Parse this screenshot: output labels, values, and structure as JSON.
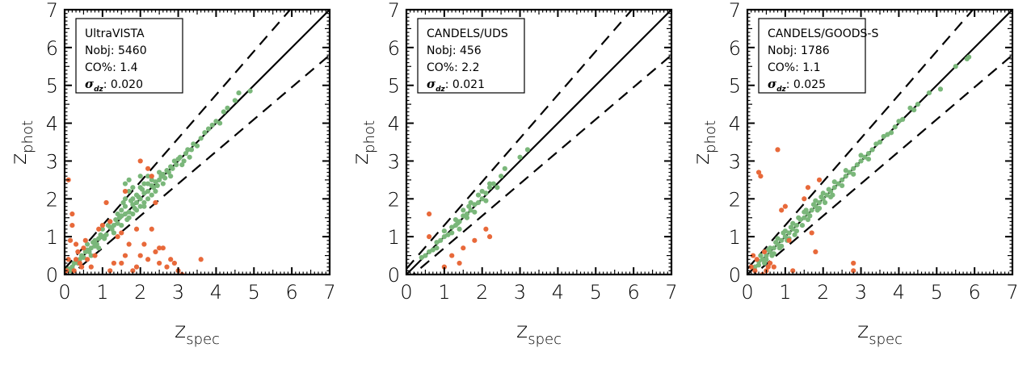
{
  "colors": {
    "good": "#7ab77a",
    "outlier": "#e8693a",
    "line": "#000000"
  },
  "chart_data": [
    {
      "type": "scatter",
      "xlabel_main": "z",
      "xlabel_sub": "spec",
      "ylabel_main": "z",
      "ylabel_sub": "phot",
      "xlim": [
        0,
        7
      ],
      "ylim": [
        0,
        7
      ],
      "x_ticks": [
        "0",
        "1",
        "2",
        "3",
        "4",
        "5",
        "6",
        "7"
      ],
      "y_ticks": [
        "0",
        "1",
        "2",
        "3",
        "4",
        "5",
        "6",
        "7"
      ],
      "legend_position": "top-left",
      "legend": {
        "name": "UltraVISTA",
        "nobj_label": "Nobj:",
        "nobj": "5460",
        "co_label": "CO%:",
        "co": "1.4",
        "sigma_symbol": "σ",
        "sigma_sub": "dz",
        "sigma": "0.020"
      },
      "lines": {
        "one_to_one": true,
        "dashed_scatter": 0.15
      },
      "good_points": [
        [
          0.1,
          0.15
        ],
        [
          0.2,
          0.2
        ],
        [
          0.3,
          0.35
        ],
        [
          0.4,
          0.4
        ],
        [
          0.5,
          0.45
        ],
        [
          0.6,
          0.65
        ],
        [
          0.7,
          0.7
        ],
        [
          0.8,
          0.75
        ],
        [
          0.9,
          0.95
        ],
        [
          1.0,
          1.0
        ],
        [
          1.1,
          1.05
        ],
        [
          1.2,
          1.25
        ],
        [
          1.3,
          1.3
        ],
        [
          1.4,
          1.35
        ],
        [
          1.5,
          1.55
        ],
        [
          1.6,
          1.6
        ],
        [
          1.7,
          1.65
        ],
        [
          1.8,
          1.85
        ],
        [
          1.9,
          1.9
        ],
        [
          2.0,
          2.0
        ],
        [
          2.1,
          2.15
        ],
        [
          2.2,
          2.2
        ],
        [
          2.3,
          2.35
        ],
        [
          2.4,
          2.45
        ],
        [
          2.5,
          2.5
        ],
        [
          2.6,
          2.65
        ],
        [
          2.7,
          2.75
        ],
        [
          2.8,
          2.85
        ],
        [
          3.0,
          3.05
        ],
        [
          3.2,
          3.2
        ],
        [
          3.4,
          3.45
        ],
        [
          3.6,
          3.6
        ],
        [
          3.8,
          3.85
        ],
        [
          4.0,
          4.05
        ],
        [
          4.3,
          4.4
        ],
        [
          4.5,
          4.6
        ],
        [
          4.9,
          4.85
        ],
        [
          1.5,
          1.7
        ],
        [
          1.6,
          1.8
        ],
        [
          1.7,
          1.5
        ],
        [
          1.8,
          1.6
        ],
        [
          1.9,
          2.1
        ],
        [
          2.0,
          1.8
        ],
        [
          2.1,
          1.9
        ],
        [
          2.2,
          2.4
        ],
        [
          1.2,
          1.4
        ],
        [
          1.3,
          1.1
        ],
        [
          1.4,
          1.6
        ],
        [
          1.5,
          1.3
        ],
        [
          1.0,
          1.2
        ],
        [
          0.9,
          0.7
        ],
        [
          0.8,
          0.9
        ],
        [
          0.7,
          0.5
        ],
        [
          0.6,
          0.8
        ],
        [
          2.4,
          2.2
        ],
        [
          2.5,
          2.7
        ],
        [
          2.6,
          2.4
        ],
        [
          2.3,
          2.5
        ],
        [
          2.8,
          2.6
        ],
        [
          2.9,
          3.0
        ],
        [
          3.1,
          2.9
        ],
        [
          3.3,
          3.1
        ],
        [
          1.6,
          2.0
        ],
        [
          1.7,
          2.2
        ],
        [
          1.8,
          2.0
        ],
        [
          1.9,
          1.7
        ],
        [
          2.0,
          2.3
        ],
        [
          2.1,
          1.8
        ],
        [
          2.2,
          2.0
        ],
        [
          1.55,
          1.9
        ],
        [
          1.65,
          1.45
        ],
        [
          1.75,
          1.95
        ],
        [
          1.85,
          1.75
        ],
        [
          1.95,
          2.05
        ],
        [
          2.05,
          2.25
        ],
        [
          1.45,
          1.5
        ],
        [
          1.35,
          1.45
        ],
        [
          1.25,
          1.2
        ],
        [
          1.15,
          1.3
        ],
        [
          1.05,
          0.95
        ],
        [
          0.95,
          1.05
        ],
        [
          0.85,
          0.8
        ],
        [
          0.75,
          0.85
        ],
        [
          0.65,
          0.6
        ],
        [
          0.55,
          0.6
        ],
        [
          0.45,
          0.5
        ],
        [
          0.35,
          0.3
        ],
        [
          0.25,
          0.3
        ],
        [
          0.15,
          0.1
        ],
        [
          2.35,
          2.3
        ],
        [
          2.45,
          2.35
        ],
        [
          2.55,
          2.6
        ],
        [
          2.65,
          2.55
        ],
        [
          2.75,
          2.7
        ],
        [
          2.85,
          2.8
        ],
        [
          2.95,
          2.9
        ],
        [
          3.05,
          3.1
        ],
        [
          3.15,
          3.0
        ],
        [
          3.25,
          3.3
        ],
        [
          3.35,
          3.3
        ],
        [
          3.5,
          3.4
        ],
        [
          3.7,
          3.75
        ],
        [
          3.9,
          3.95
        ],
        [
          4.1,
          4.0
        ],
        [
          4.2,
          4.3
        ],
        [
          4.6,
          4.8
        ],
        [
          1.6,
          2.4
        ],
        [
          1.7,
          2.5
        ],
        [
          1.8,
          2.3
        ],
        [
          2.2,
          2.6
        ],
        [
          2.3,
          2.1
        ],
        [
          2.0,
          2.6
        ],
        [
          2.1,
          2.4
        ]
      ],
      "outlier_points": [
        [
          0.1,
          2.5
        ],
        [
          0.2,
          1.3
        ],
        [
          0.15,
          0.9
        ],
        [
          0.3,
          0.8
        ],
        [
          0.35,
          0.6
        ],
        [
          0.4,
          0.3
        ],
        [
          0.5,
          0.7
        ],
        [
          0.55,
          0.9
        ],
        [
          0.6,
          0.4
        ],
        [
          0.7,
          0.2
        ],
        [
          0.8,
          0.5
        ],
        [
          0.9,
          1.2
        ],
        [
          1.0,
          1.3
        ],
        [
          1.1,
          1.9
        ],
        [
          1.2,
          0.1
        ],
        [
          1.3,
          0.3
        ],
        [
          1.4,
          1.0
        ],
        [
          1.5,
          0.3
        ],
        [
          1.6,
          0.5
        ],
        [
          1.7,
          0.8
        ],
        [
          1.8,
          0.1
        ],
        [
          1.9,
          0.2
        ],
        [
          2.0,
          0.5
        ],
        [
          2.1,
          0.8
        ],
        [
          2.2,
          0.4
        ],
        [
          2.3,
          1.2
        ],
        [
          2.4,
          0.6
        ],
        [
          2.5,
          0.3
        ],
        [
          2.6,
          0.7
        ],
        [
          2.7,
          0.2
        ],
        [
          2.8,
          0.4
        ],
        [
          3.0,
          0.1
        ],
        [
          3.1,
          0.0
        ],
        [
          3.6,
          0.4
        ],
        [
          2.4,
          1.9
        ],
        [
          2.3,
          2.6
        ],
        [
          1.9,
          1.2
        ],
        [
          1.6,
          2.2
        ],
        [
          1.5,
          1.1
        ],
        [
          1.2,
          1.4
        ],
        [
          0.2,
          1.6
        ],
        [
          0.25,
          0.1
        ],
        [
          0.1,
          0.4
        ],
        [
          0.05,
          0.1
        ],
        [
          0.3,
          0.4
        ],
        [
          0.45,
          0.2
        ],
        [
          2.0,
          3.0
        ],
        [
          2.2,
          2.8
        ],
        [
          2.5,
          0.7
        ],
        [
          2.9,
          0.3
        ]
      ]
    },
    {
      "type": "scatter",
      "xlabel_main": "z",
      "xlabel_sub": "spec",
      "ylabel_main": "z",
      "ylabel_sub": "phot",
      "xlim": [
        0,
        7
      ],
      "ylim": [
        0,
        7
      ],
      "x_ticks": [
        "0",
        "1",
        "2",
        "3",
        "4",
        "5",
        "6",
        "7"
      ],
      "y_ticks": [
        "0",
        "1",
        "2",
        "3",
        "4",
        "5",
        "6",
        "7"
      ],
      "legend_position": "top-left",
      "legend": {
        "name": "CANDELS/UDS",
        "nobj_label": "Nobj:",
        "nobj": "456",
        "co_label": "CO%:",
        "co": "2.2",
        "sigma_symbol": "σ",
        "sigma_sub": "dz",
        "sigma": "0.021"
      },
      "lines": {
        "one_to_one": true,
        "dashed_scatter": 0.15
      },
      "good_points": [
        [
          0.4,
          0.45
        ],
        [
          0.5,
          0.5
        ],
        [
          0.6,
          0.6
        ],
        [
          0.7,
          0.65
        ],
        [
          0.8,
          0.85
        ],
        [
          0.9,
          0.9
        ],
        [
          1.0,
          1.0
        ],
        [
          1.1,
          1.05
        ],
        [
          1.2,
          1.25
        ],
        [
          1.3,
          1.3
        ],
        [
          1.4,
          1.4
        ],
        [
          1.5,
          1.55
        ],
        [
          1.6,
          1.6
        ],
        [
          1.7,
          1.7
        ],
        [
          1.8,
          1.85
        ],
        [
          1.9,
          1.9
        ],
        [
          2.0,
          2.0
        ],
        [
          2.1,
          2.15
        ],
        [
          2.2,
          2.3
        ],
        [
          2.3,
          2.4
        ],
        [
          2.5,
          2.6
        ],
        [
          2.6,
          2.8
        ],
        [
          3.0,
          3.1
        ],
        [
          3.2,
          3.3
        ],
        [
          1.5,
          1.7
        ],
        [
          1.6,
          1.5
        ],
        [
          1.3,
          1.45
        ],
        [
          1.2,
          1.1
        ],
        [
          1.7,
          1.9
        ],
        [
          1.8,
          1.65
        ],
        [
          2.0,
          2.2
        ],
        [
          2.1,
          1.95
        ],
        [
          2.2,
          2.4
        ],
        [
          1.4,
          1.2
        ],
        [
          1.0,
          1.15
        ],
        [
          0.8,
          0.7
        ],
        [
          2.4,
          2.3
        ],
        [
          1.9,
          2.1
        ],
        [
          1.65,
          1.8
        ],
        [
          1.35,
          1.35
        ]
      ],
      "outlier_points": [
        [
          0.6,
          1.0
        ],
        [
          0.6,
          1.6
        ],
        [
          1.2,
          0.5
        ],
        [
          1.4,
          0.3
        ],
        [
          1.5,
          0.7
        ],
        [
          1.8,
          0.9
        ],
        [
          2.1,
          1.2
        ],
        [
          2.2,
          1.0
        ],
        [
          1.0,
          0.2
        ]
      ]
    },
    {
      "type": "scatter",
      "xlabel_main": "z",
      "xlabel_sub": "spec",
      "ylabel_main": "z",
      "ylabel_sub": "phot",
      "xlim": [
        0,
        7
      ],
      "ylim": [
        0,
        7
      ],
      "x_ticks": [
        "0",
        "1",
        "2",
        "3",
        "4",
        "5",
        "6",
        "7"
      ],
      "y_ticks": [
        "0",
        "1",
        "2",
        "3",
        "4",
        "5",
        "6",
        "7"
      ],
      "legend_position": "top-left",
      "legend": {
        "name": "CANDELS/GOODS-S",
        "nobj_label": "Nobj:",
        "nobj": "1786",
        "co_label": "CO%:",
        "co": "1.1",
        "sigma_symbol": "σ",
        "sigma_sub": "dz",
        "sigma": "0.025"
      },
      "lines": {
        "one_to_one": true,
        "dashed_scatter": 0.15
      },
      "good_points": [
        [
          0.2,
          0.2
        ],
        [
          0.3,
          0.35
        ],
        [
          0.4,
          0.4
        ],
        [
          0.5,
          0.5
        ],
        [
          0.6,
          0.6
        ],
        [
          0.7,
          0.7
        ],
        [
          0.8,
          0.8
        ],
        [
          0.9,
          0.9
        ],
        [
          1.0,
          1.0
        ],
        [
          1.1,
          1.1
        ],
        [
          1.2,
          1.2
        ],
        [
          1.3,
          1.3
        ],
        [
          1.4,
          1.45
        ],
        [
          1.5,
          1.5
        ],
        [
          1.6,
          1.6
        ],
        [
          1.7,
          1.7
        ],
        [
          1.8,
          1.8
        ],
        [
          1.9,
          1.9
        ],
        [
          2.0,
          2.0
        ],
        [
          2.1,
          2.1
        ],
        [
          2.2,
          2.2
        ],
        [
          2.3,
          2.3
        ],
        [
          2.4,
          2.4
        ],
        [
          2.5,
          2.5
        ],
        [
          2.6,
          2.6
        ],
        [
          2.7,
          2.7
        ],
        [
          2.8,
          2.8
        ],
        [
          2.9,
          2.9
        ],
        [
          3.0,
          3.0
        ],
        [
          3.1,
          3.1
        ],
        [
          3.2,
          3.2
        ],
        [
          3.3,
          3.3
        ],
        [
          3.5,
          3.5
        ],
        [
          3.7,
          3.7
        ],
        [
          3.9,
          3.9
        ],
        [
          4.1,
          4.1
        ],
        [
          4.3,
          4.4
        ],
        [
          4.5,
          4.5
        ],
        [
          4.8,
          4.8
        ],
        [
          5.1,
          4.9
        ],
        [
          5.5,
          5.5
        ],
        [
          5.8,
          5.7
        ],
        [
          5.85,
          5.75
        ],
        [
          0.5,
          0.4
        ],
        [
          0.6,
          0.7
        ],
        [
          0.7,
          0.55
        ],
        [
          0.8,
          0.95
        ],
        [
          0.9,
          0.75
        ],
        [
          1.0,
          1.15
        ],
        [
          1.1,
          0.95
        ],
        [
          1.2,
          1.35
        ],
        [
          1.3,
          1.15
        ],
        [
          1.5,
          1.65
        ],
        [
          1.6,
          1.45
        ],
        [
          1.8,
          1.95
        ],
        [
          1.9,
          1.75
        ],
        [
          2.0,
          2.15
        ],
        [
          2.2,
          2.05
        ],
        [
          2.3,
          2.45
        ],
        [
          2.5,
          2.35
        ],
        [
          2.6,
          2.75
        ],
        [
          2.8,
          2.65
        ],
        [
          3.0,
          3.15
        ],
        [
          3.2,
          3.05
        ],
        [
          3.4,
          3.45
        ],
        [
          3.6,
          3.65
        ],
        [
          3.8,
          3.75
        ],
        [
          4.0,
          4.05
        ],
        [
          4.4,
          4.35
        ],
        [
          0.3,
          0.25
        ],
        [
          0.35,
          0.5
        ],
        [
          0.45,
          0.3
        ],
        [
          0.55,
          0.65
        ],
        [
          0.65,
          0.5
        ],
        [
          0.75,
          0.85
        ],
        [
          0.85,
          0.7
        ],
        [
          0.95,
          1.1
        ],
        [
          1.05,
          0.9
        ],
        [
          1.15,
          1.25
        ],
        [
          1.25,
          1.05
        ],
        [
          1.35,
          1.5
        ],
        [
          1.45,
          1.3
        ],
        [
          1.55,
          1.7
        ],
        [
          1.65,
          1.55
        ],
        [
          1.75,
          1.85
        ],
        [
          1.85,
          1.7
        ],
        [
          1.95,
          2.05
        ],
        [
          2.05,
          1.9
        ],
        [
          2.15,
          2.25
        ],
        [
          2.25,
          2.1
        ]
      ],
      "outlier_points": [
        [
          0.2,
          0.1
        ],
        [
          0.25,
          0.4
        ],
        [
          0.3,
          2.7
        ],
        [
          0.35,
          2.6
        ],
        [
          0.4,
          0.0
        ],
        [
          0.5,
          0.1
        ],
        [
          0.6,
          0.3
        ],
        [
          0.7,
          0.2
        ],
        [
          0.8,
          3.3
        ],
        [
          0.9,
          1.7
        ],
        [
          1.0,
          1.8
        ],
        [
          1.1,
          0.9
        ],
        [
          1.2,
          0.1
        ],
        [
          1.5,
          2.0
        ],
        [
          1.6,
          2.3
        ],
        [
          1.7,
          1.1
        ],
        [
          1.9,
          2.5
        ],
        [
          1.8,
          0.6
        ],
        [
          2.8,
          0.1
        ],
        [
          2.8,
          0.3
        ],
        [
          0.1,
          0.2
        ],
        [
          0.15,
          0.5
        ],
        [
          0.45,
          0.6
        ],
        [
          0.55,
          0.2
        ]
      ]
    }
  ]
}
